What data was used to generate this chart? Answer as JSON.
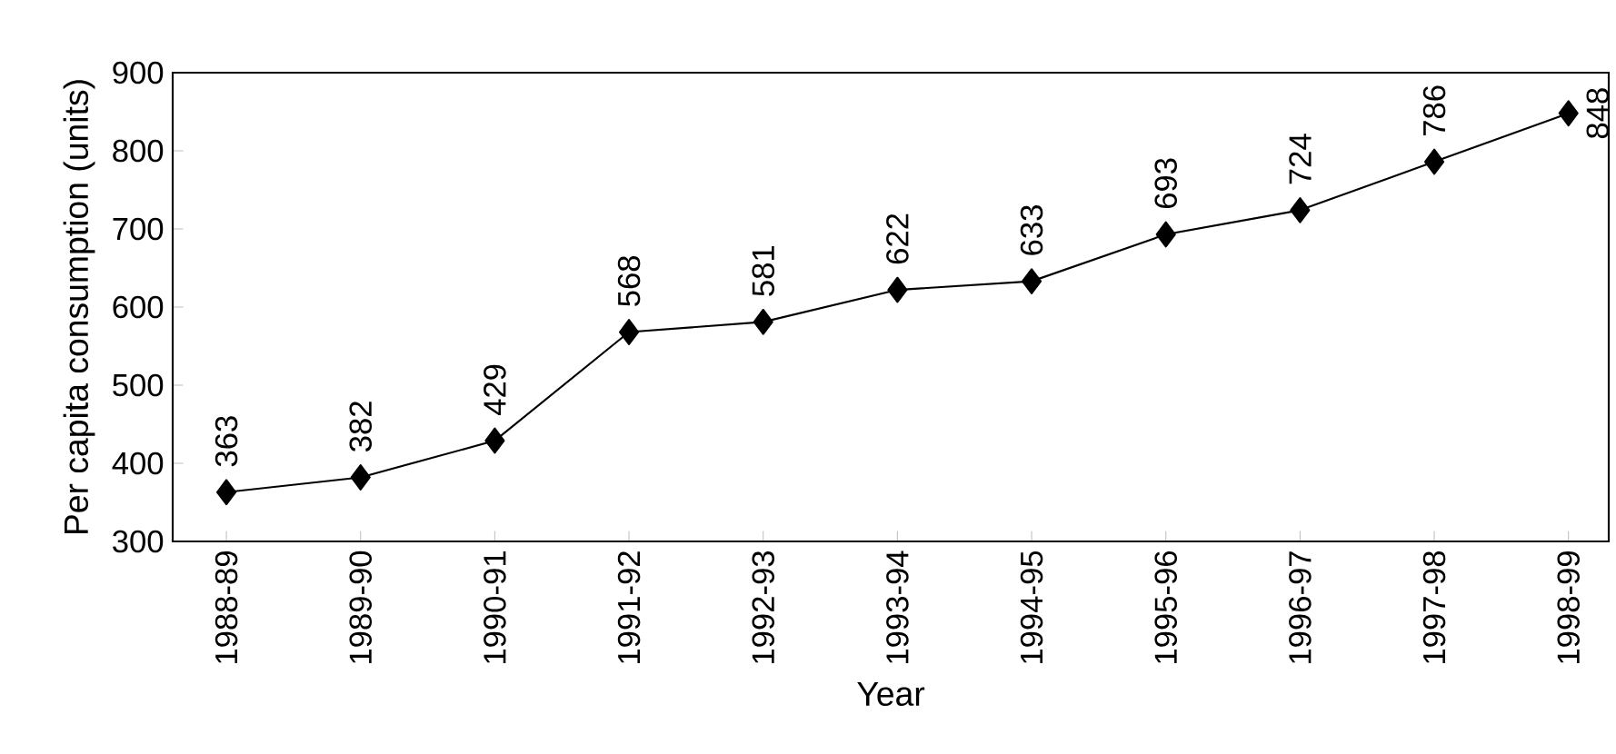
{
  "chart_data": {
    "type": "line",
    "xlabel": "Year",
    "ylabel": "Per capita consumption (units)",
    "categories": [
      "1988-89",
      "1989-90",
      "1990-91",
      "1991-92",
      "1992-93",
      "1993-94",
      "1994-95",
      "1995-96",
      "1996-97",
      "1997-98",
      "1998-99"
    ],
    "values": [
      363,
      382,
      429,
      568,
      581,
      622,
      633,
      693,
      724,
      786,
      848
    ],
    "color": "#000000",
    "ylim": [
      300,
      900
    ],
    "yticks": [
      300,
      400,
      500,
      600,
      700,
      800,
      900
    ],
    "marker": "diamond",
    "line_style": "solid",
    "data_labels": true,
    "grid": false
  }
}
